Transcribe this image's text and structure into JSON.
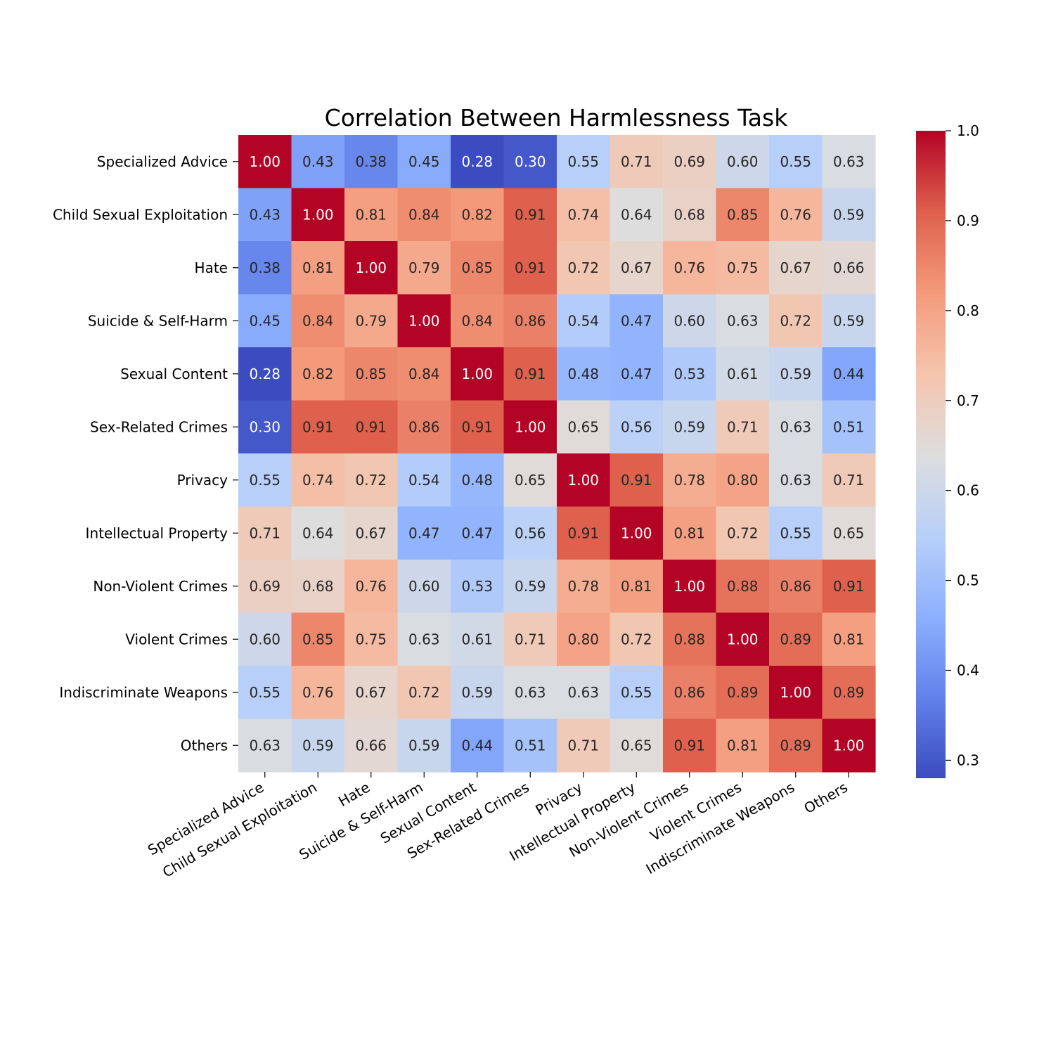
{
  "chart_data": {
    "type": "heatmap",
    "title": "Correlation Between Harmlessness Task",
    "labels": [
      "Specialized Advice",
      "Child Sexual Exploitation",
      "Hate",
      "Suicide & Self-Harm",
      "Sexual Content",
      "Sex-Related Crimes",
      "Privacy",
      "Intellectual Property",
      "Non-Violent Crimes",
      "Violent Crimes",
      "Indiscriminate Weapons",
      "Others"
    ],
    "values": [
      [
        1.0,
        0.43,
        0.38,
        0.45,
        0.28,
        0.3,
        0.55,
        0.71,
        0.69,
        0.6,
        0.55,
        0.63
      ],
      [
        0.43,
        1.0,
        0.81,
        0.84,
        0.82,
        0.91,
        0.74,
        0.64,
        0.68,
        0.85,
        0.76,
        0.59
      ],
      [
        0.38,
        0.81,
        1.0,
        0.79,
        0.85,
        0.91,
        0.72,
        0.67,
        0.76,
        0.75,
        0.67,
        0.66
      ],
      [
        0.45,
        0.84,
        0.79,
        1.0,
        0.84,
        0.86,
        0.54,
        0.47,
        0.6,
        0.63,
        0.72,
        0.59
      ],
      [
        0.28,
        0.82,
        0.85,
        0.84,
        1.0,
        0.91,
        0.48,
        0.47,
        0.53,
        0.61,
        0.59,
        0.44
      ],
      [
        0.3,
        0.91,
        0.91,
        0.86,
        0.91,
        1.0,
        0.65,
        0.56,
        0.59,
        0.71,
        0.63,
        0.51
      ],
      [
        0.55,
        0.74,
        0.72,
        0.54,
        0.48,
        0.65,
        1.0,
        0.91,
        0.78,
        0.8,
        0.63,
        0.71
      ],
      [
        0.71,
        0.64,
        0.67,
        0.47,
        0.47,
        0.56,
        0.91,
        1.0,
        0.81,
        0.72,
        0.55,
        0.65
      ],
      [
        0.69,
        0.68,
        0.76,
        0.6,
        0.53,
        0.59,
        0.78,
        0.81,
        1.0,
        0.88,
        0.86,
        0.91
      ],
      [
        0.6,
        0.85,
        0.75,
        0.63,
        0.61,
        0.71,
        0.8,
        0.72,
        0.88,
        1.0,
        0.89,
        0.81
      ],
      [
        0.55,
        0.76,
        0.67,
        0.72,
        0.59,
        0.63,
        0.63,
        0.55,
        0.86,
        0.89,
        1.0,
        0.89
      ],
      [
        0.63,
        0.59,
        0.66,
        0.59,
        0.44,
        0.51,
        0.71,
        0.65,
        0.91,
        0.81,
        0.89,
        1.0
      ]
    ],
    "colormap": "coolwarm",
    "vmin": 0.28,
    "vmax": 1.0,
    "colorbar_ticks": [
      0.3,
      0.4,
      0.5,
      0.6,
      0.7,
      0.8,
      0.9,
      1.0
    ],
    "colorbar_tick_labels": [
      "0.3",
      "0.4",
      "0.5",
      "0.6",
      "0.7",
      "0.8",
      "0.9",
      "1.0"
    ],
    "annotation_format": "2 decimals",
    "colorbar_position": "right"
  }
}
